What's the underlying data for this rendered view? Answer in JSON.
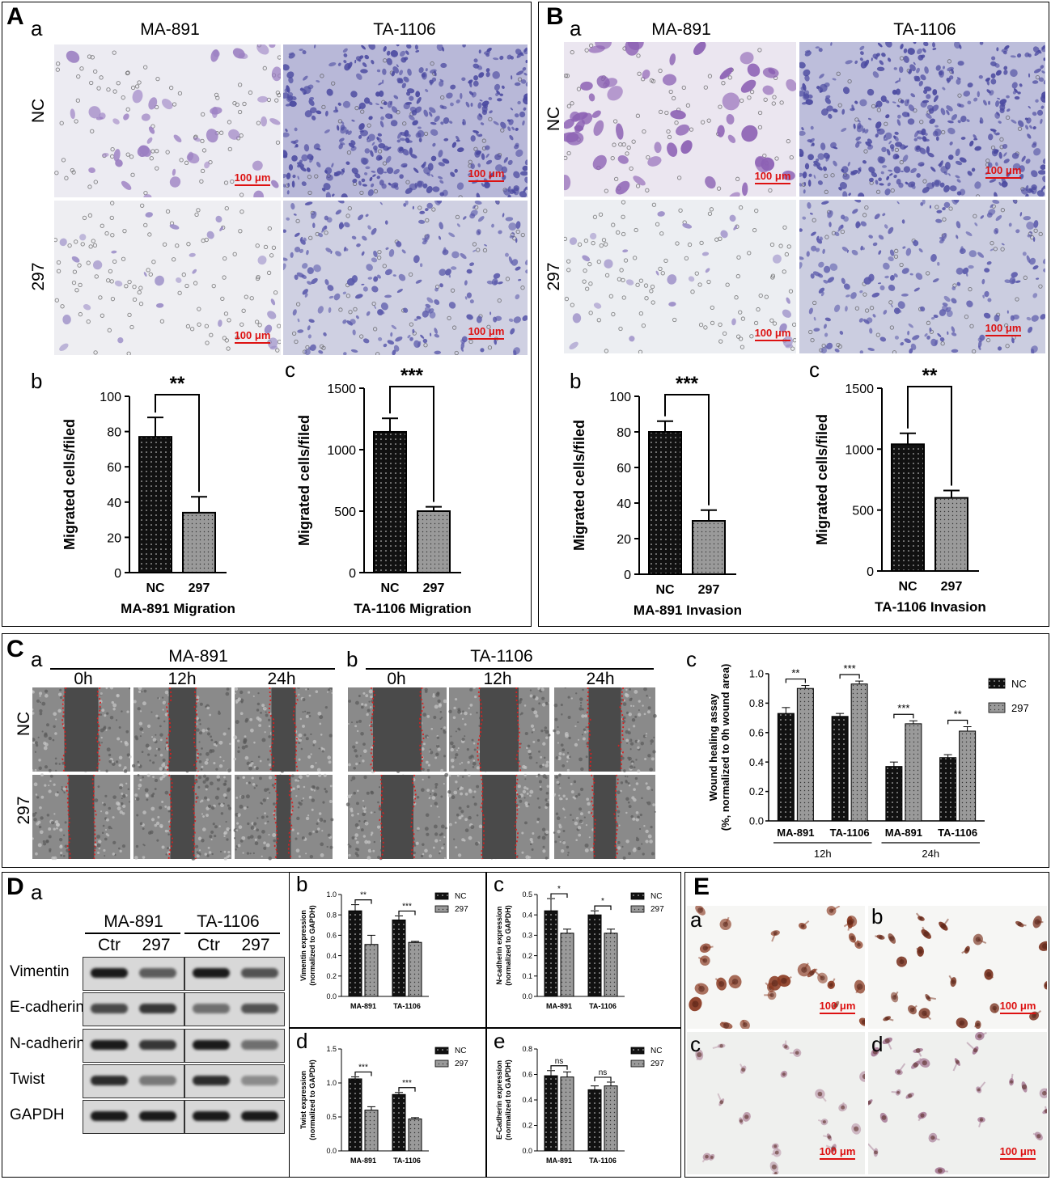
{
  "colors": {
    "cells_light": "#9b7fc2",
    "cells_dense": "#5653a6",
    "scale": "#dd1111",
    "wound": "#c32020"
  },
  "panelA": {
    "letter": "A",
    "sub_a": "a",
    "sub_b": "b",
    "sub_c": "c",
    "col_left": "MA-891",
    "col_right": "TA-1106",
    "row_top": "NC",
    "row_bottom": "297",
    "scale": "100 μm"
  },
  "panelB": {
    "letter": "B",
    "sub_a": "a",
    "sub_b": "b",
    "sub_c": "c",
    "col_left": "MA-891",
    "col_right": "TA-1106",
    "row_top": "NC",
    "row_bottom": "297",
    "scale": "100 μm"
  },
  "panelC": {
    "letter": "C",
    "sub_a": "a",
    "sub_b": "b",
    "sub_c": "c",
    "group_a": "MA-891",
    "group_b": "TA-1106",
    "times": [
      "0h",
      "12h",
      "24h"
    ],
    "row_top": "NC",
    "row_bottom": "297"
  },
  "panelD": {
    "letter": "D",
    "sub_a": "a",
    "sub_b": "b",
    "sub_c": "c",
    "sub_d": "d",
    "sub_e": "e",
    "group_a": "MA-891",
    "group_b": "TA-1106",
    "lanes": [
      "Ctr",
      "297",
      "Ctr",
      "297"
    ],
    "proteins": [
      "Vimentin",
      "E-cadherin",
      "N-cadherin",
      "Twist",
      "GAPDH"
    ]
  },
  "panelE": {
    "letter": "E",
    "subs": [
      "a",
      "b",
      "c",
      "d"
    ],
    "scale": "100 μm"
  },
  "chart_data": [
    {
      "id": "A-b",
      "type": "bar",
      "categories": [
        "NC",
        "297"
      ],
      "values": [
        77,
        34
      ],
      "errors": [
        11,
        9
      ],
      "ylim": [
        0,
        100
      ],
      "ticks": [
        0,
        20,
        40,
        60,
        80,
        100
      ],
      "ylabel": "Migrated cells/filed",
      "xlabel": "MA-891 Migration",
      "sig": "**"
    },
    {
      "id": "A-c",
      "type": "bar",
      "categories": [
        "NC",
        "297"
      ],
      "values": [
        1145,
        500
      ],
      "errors": [
        110,
        35
      ],
      "ylim": [
        0,
        1500
      ],
      "ticks": [
        0,
        500,
        1000,
        1500
      ],
      "ylabel": "Migrated cells/filed",
      "xlabel": "TA-1106 Migration",
      "sig": "***"
    },
    {
      "id": "B-b",
      "type": "bar",
      "categories": [
        "NC",
        "297"
      ],
      "values": [
        80,
        30
      ],
      "errors": [
        6,
        6
      ],
      "ylim": [
        0,
        100
      ],
      "ticks": [
        0,
        20,
        40,
        60,
        80,
        100
      ],
      "ylabel": "Migrated cells/filed",
      "xlabel": "MA-891 Invasion",
      "sig": "***"
    },
    {
      "id": "B-c",
      "type": "bar",
      "categories": [
        "NC",
        "297"
      ],
      "values": [
        1040,
        600
      ],
      "errors": [
        90,
        60
      ],
      "ylim": [
        0,
        1500
      ],
      "ticks": [
        0,
        500,
        1000,
        1500
      ],
      "ylabel": "Migrated cells/filed",
      "xlabel": "TA-1106 Invasion",
      "sig": "**"
    },
    {
      "id": "C-c",
      "type": "bar",
      "categories": [
        "MA-891",
        "TA-1106",
        "MA-891",
        "TA-1106"
      ],
      "groups": [
        "12h",
        "24h"
      ],
      "series": [
        {
          "name": "NC",
          "values": [
            0.73,
            0.71,
            0.37,
            0.43
          ],
          "errors": [
            0.04,
            0.02,
            0.03,
            0.02
          ]
        },
        {
          "name": "297",
          "values": [
            0.9,
            0.93,
            0.66,
            0.61
          ],
          "errors": [
            0.02,
            0.02,
            0.02,
            0.03
          ]
        }
      ],
      "sig": [
        "**",
        "***",
        "***",
        "**"
      ],
      "ylim": [
        0,
        1.0
      ],
      "ticks": [
        "0.0",
        "0.2",
        "0.4",
        "0.6",
        "0.8",
        "1.0"
      ],
      "ylabel": "Wound healing assay",
      "ylabel2": "(%, normalized to 0h wound area)"
    },
    {
      "id": "D-b",
      "type": "bar",
      "categories": [
        "MA-891",
        "TA-1106"
      ],
      "series": [
        {
          "name": "NC",
          "values": [
            0.84,
            0.75
          ],
          "errors": [
            0.06,
            0.04
          ]
        },
        {
          "name": "297",
          "values": [
            0.51,
            0.53
          ],
          "errors": [
            0.09,
            0.01
          ]
        }
      ],
      "sig": [
        "**",
        "***"
      ],
      "ylim": [
        0,
        1.0
      ],
      "ticks": [
        "0.0",
        "0.2",
        "0.4",
        "0.6",
        "0.8",
        "1.0"
      ],
      "ylabel": "Vimentin expression",
      "ylabel2": "(normalized to GAPDH)"
    },
    {
      "id": "D-c",
      "type": "bar",
      "categories": [
        "MA-891",
        "TA-1106"
      ],
      "series": [
        {
          "name": "NC",
          "values": [
            0.42,
            0.4
          ],
          "errors": [
            0.06,
            0.02
          ]
        },
        {
          "name": "297",
          "values": [
            0.31,
            0.31
          ],
          "errors": [
            0.02,
            0.02
          ]
        }
      ],
      "sig": [
        "*",
        "*"
      ],
      "ylim": [
        0,
        0.5
      ],
      "ticks": [
        "0.0",
        "0.1",
        "0.2",
        "0.3",
        "0.4",
        "0.5"
      ],
      "ylabel": "N-cadherin expression",
      "ylabel2": "(normalized to GAPDH)"
    },
    {
      "id": "D-d",
      "type": "bar",
      "categories": [
        "MA-891",
        "TA-1106"
      ],
      "series": [
        {
          "name": "NC",
          "values": [
            1.06,
            0.83
          ],
          "errors": [
            0.03,
            0.03
          ]
        },
        {
          "name": "297",
          "values": [
            0.6,
            0.47
          ],
          "errors": [
            0.05,
            0.02
          ]
        }
      ],
      "sig": [
        "***",
        "***"
      ],
      "ylim": [
        0,
        1.5
      ],
      "ticks": [
        "0.0",
        "0.5",
        "1.0",
        "1.5"
      ],
      "ylabel": "Twist expression",
      "ylabel2": "(normalized to GAPDH)"
    },
    {
      "id": "D-e",
      "type": "bar",
      "categories": [
        "MA-891",
        "TA-1106"
      ],
      "series": [
        {
          "name": "NC",
          "values": [
            0.59,
            0.48
          ],
          "errors": [
            0.04,
            0.03
          ]
        },
        {
          "name": "297",
          "values": [
            0.58,
            0.51
          ],
          "errors": [
            0.04,
            0.03
          ]
        }
      ],
      "sig": [
        "ns",
        "ns"
      ],
      "ylim": [
        0,
        0.8
      ],
      "ticks": [
        "0.0",
        "0.2",
        "0.4",
        "0.6",
        "0.8"
      ],
      "ylabel": "E-Cadherin expression",
      "ylabel2": "(normalized to GAPDH)"
    }
  ]
}
